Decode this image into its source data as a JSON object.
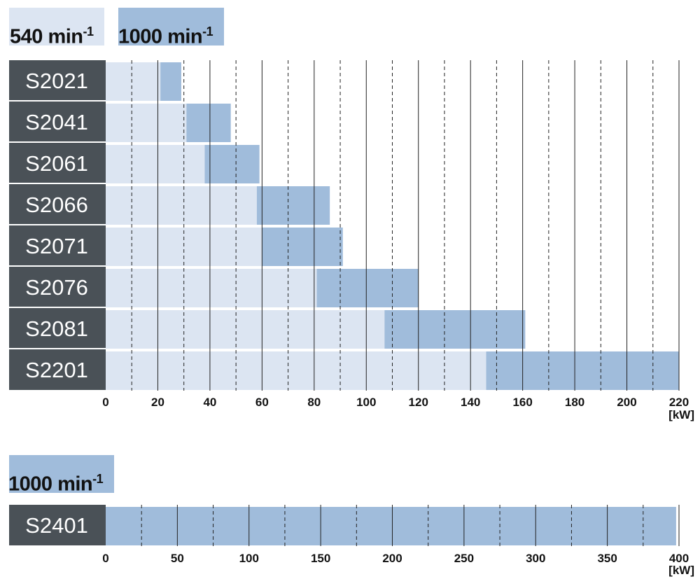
{
  "colors": {
    "light": "#dce5f2",
    "dark": "#a0bcdb",
    "label_bg": "#4a5157",
    "label_text": "#ffffff",
    "grid": "#222222",
    "text": "#111111"
  },
  "legend": {
    "speed_540": {
      "text": "540 min",
      "sup": "-1"
    },
    "speed_1000": {
      "text": "1000 min",
      "sup": "-1"
    }
  },
  "chart_data": [
    {
      "type": "bar",
      "orientation": "horizontal",
      "categories": [
        "S2021",
        "S2041",
        "S2061",
        "S2066",
        "S2071",
        "S2076",
        "S2081",
        "S2201"
      ],
      "series": [
        {
          "name": "540 min-1",
          "color": "light",
          "ranges": [
            [
              0,
              21
            ],
            [
              0,
              31
            ],
            [
              0,
              38
            ],
            [
              0,
              58
            ],
            [
              0,
              60
            ],
            [
              0,
              81
            ],
            [
              0,
              107
            ],
            [
              0,
              146
            ]
          ]
        },
        {
          "name": "1000 min-1",
          "color": "dark",
          "ranges": [
            [
              21,
              29
            ],
            [
              31,
              48
            ],
            [
              38,
              59
            ],
            [
              58,
              86
            ],
            [
              60,
              91
            ],
            [
              81,
              120
            ],
            [
              107,
              161
            ],
            [
              146,
              220
            ]
          ]
        }
      ],
      "xlim": [
        0,
        220
      ],
      "major_ticks": [
        0,
        20,
        40,
        60,
        80,
        100,
        120,
        140,
        160,
        180,
        200,
        220
      ],
      "minor_ticks": [
        10,
        30,
        50,
        70,
        90,
        110,
        130,
        150,
        170,
        190,
        210
      ],
      "unit": "[kW]"
    },
    {
      "type": "bar",
      "orientation": "horizontal",
      "categories": [
        "S2401"
      ],
      "series": [
        {
          "name": "1000 min-1",
          "color": "dark",
          "ranges": [
            [
              0,
              398
            ]
          ]
        }
      ],
      "xlim": [
        0,
        400
      ],
      "major_ticks": [
        0,
        50,
        100,
        150,
        200,
        250,
        300,
        350,
        400
      ],
      "minor_ticks": [
        25,
        75,
        125,
        175,
        225,
        275,
        325,
        375
      ],
      "unit": "[kW]"
    }
  ]
}
